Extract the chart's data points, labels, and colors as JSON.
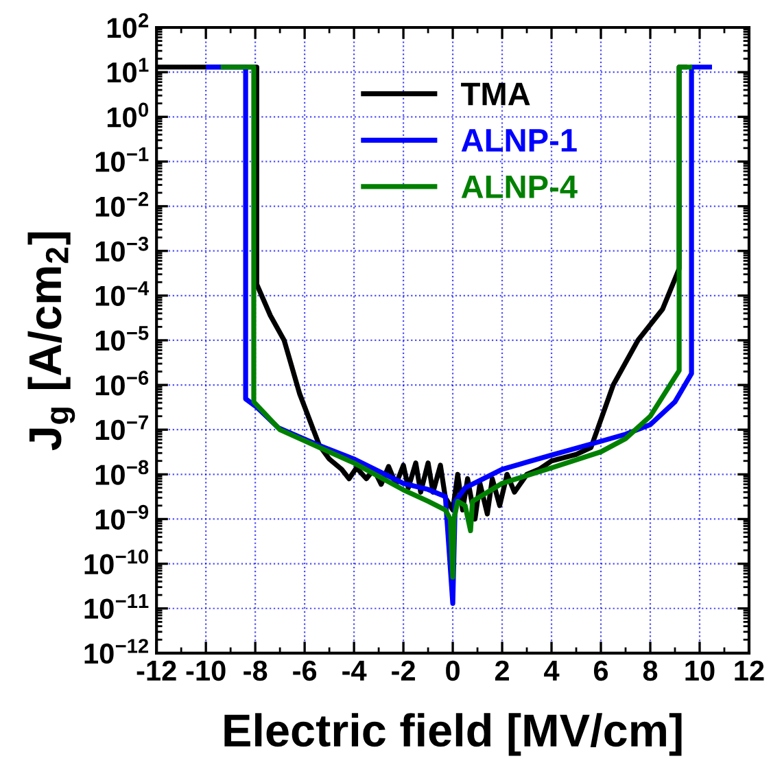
{
  "chart_data": {
    "type": "line",
    "xlabel": "Electric field [MV/cm]",
    "ylabel": "J$_{g}$ [A/cm$_{2}$]",
    "log": "y",
    "grid": true,
    "legend": "top",
    "line_style": "solid",
    "marker": "none",
    "xlim": [
      -12,
      12
    ],
    "xticks": [
      -12,
      -10,
      -8,
      -6,
      -4,
      -2,
      0,
      2,
      4,
      6,
      8,
      10,
      12
    ],
    "ylim": [
      1e-12,
      100
    ],
    "yticks": [
      {
        "value": 1e-12,
        "label": "10$^{−12}$"
      },
      {
        "value": 1e-11,
        "label": "10$^{−11}$"
      },
      {
        "value": 1e-10,
        "label": "10$^{−10}$"
      },
      {
        "value": 1e-09,
        "label": "10$^{−9}$"
      },
      {
        "value": 1e-08,
        "label": "10$^{−8}$"
      },
      {
        "value": 1e-07,
        "label": "10$^{−7}$"
      },
      {
        "value": 1e-06,
        "label": "10$^{−6}$"
      },
      {
        "value": 1e-05,
        "label": "10$^{−5}$"
      },
      {
        "value": 0.0001,
        "label": "10$^{−4}$"
      },
      {
        "value": 0.001,
        "label": "10$^{−3}$"
      },
      {
        "value": 0.01,
        "label": "10$^{−2}$"
      },
      {
        "value": 0.1,
        "label": "10$^{−1}$"
      },
      {
        "value": 1,
        "label": "10$^{0}$"
      },
      {
        "value": 10,
        "label": "10$^{1}$"
      },
      {
        "value": 100,
        "label": "10$^{2}$"
      }
    ],
    "series": [
      {
        "name": "TMA",
        "color": "#000000",
        "x": [
          -12,
          -7.94,
          -7.94,
          -7.39,
          -6.83,
          -6.2,
          -5.4,
          -5.0,
          -4.5,
          -4.2,
          -3.9,
          -3.5,
          -3.2,
          -2.9,
          -2.6,
          -2.3,
          -2.0,
          -1.8,
          -1.5,
          -1.3,
          -1.0,
          -0.8,
          -0.5,
          -0.3,
          0,
          0.2,
          0.4,
          0.6,
          0.9,
          1.1,
          1.4,
          1.6,
          1.9,
          2.2,
          2.5,
          3,
          3.5,
          4,
          5,
          5.6,
          6.5,
          7.5,
          8.5,
          9.17,
          9.17,
          9.4
        ],
        "values": [
          13,
          13,
          0.00018,
          3.6e-05,
          1e-05,
          6.3e-07,
          4.4e-08,
          2.2e-08,
          1.3e-08,
          8e-09,
          1.4e-08,
          8e-09,
          1.3e-08,
          6e-09,
          1.5e-08,
          6e-09,
          1.6e-08,
          5e-09,
          1.8e-08,
          4e-09,
          1.8e-08,
          4e-09,
          1.6e-08,
          3e-09,
          1.6e-09,
          1e-08,
          1.6e-09,
          8e-09,
          1e-09,
          6.3e-09,
          1.3e-09,
          8e-09,
          2e-09,
          1e-08,
          4e-09,
          1e-08,
          1.3e-08,
          2e-08,
          2.8e-08,
          4e-08,
          1e-06,
          1e-05,
          5e-05,
          0.0004,
          13,
          13
        ]
      },
      {
        "name": "ALNP-1",
        "color": "#0000ff",
        "x": [
          -9.9,
          -8.39,
          -8.39,
          -7.94,
          -7.06,
          -5.4,
          -4,
          -2,
          -1,
          -0.3,
          0,
          0.1,
          0.5,
          2,
          4,
          6,
          7,
          8,
          9,
          9.67,
          9.67,
          10.4
        ],
        "values": [
          13,
          13,
          4.9e-07,
          3.2e-07,
          1.1e-07,
          4.4e-08,
          2.2e-08,
          6.3e-09,
          4.6e-09,
          3.2e-09,
          1.3e-11,
          2.5e-09,
          5e-09,
          1.3e-08,
          2.7e-08,
          5.5e-08,
          7.9e-08,
          1.3e-07,
          4.2e-07,
          1.8e-06,
          13,
          13
        ]
      },
      {
        "name": "ALNP-4",
        "color": "#008000",
        "x": [
          -9.3,
          -8.06,
          -8.06,
          -7,
          -5.4,
          -4,
          -2,
          -1,
          -0.3,
          -0.1,
          0,
          0.05,
          0.2,
          0.5,
          0.72,
          0.8,
          2,
          4,
          6,
          7,
          8,
          9.17,
          9.17,
          9.6
        ],
        "values": [
          13,
          13,
          4.2e-07,
          1e-07,
          4e-08,
          1.8e-08,
          4.5e-09,
          2.5e-09,
          1.6e-09,
          1e-09,
          5e-11,
          1e-09,
          2.5e-09,
          2e-09,
          5.5e-10,
          2.5e-09,
          6.3e-09,
          1.4e-08,
          3.2e-08,
          6.3e-08,
          2e-07,
          2.1e-06,
          13,
          13
        ]
      }
    ]
  }
}
